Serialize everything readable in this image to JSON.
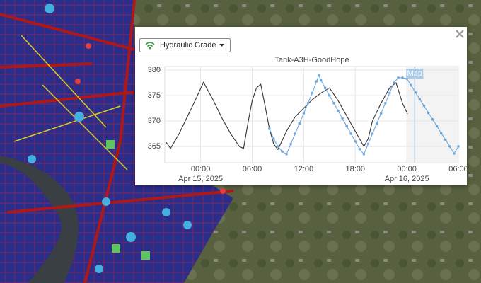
{
  "dropdown": {
    "label": "Hydraulic Grade"
  },
  "chart_data": {
    "type": "line",
    "title": "Tank-A3H-GoodHope",
    "xlim": [
      "2025-04-14T19:50",
      "2025-04-16T06:00"
    ],
    "xticks": [
      {
        "value": "2025-04-15T00:00",
        "label": "00:00\nApr 15, 2025"
      },
      {
        "value": "2025-04-15T06:00",
        "label": "06:00"
      },
      {
        "value": "2025-04-15T12:00",
        "label": "12:00"
      },
      {
        "value": "2025-04-15T18:00",
        "label": "18:00"
      },
      {
        "value": "2025-04-16T00:00",
        "label": "00:00\nApr 16, 2025"
      },
      {
        "value": "2025-04-16T06:00",
        "label": "06:00"
      }
    ],
    "ylim": [
      361.8,
      380.7
    ],
    "yticks": [
      365,
      370,
      375,
      380
    ],
    "grid": true,
    "shaded_from": "2025-04-16T00:00",
    "cursor": {
      "x": "2025-04-16T00:55",
      "label": "Map"
    },
    "series": [
      {
        "color": "#333333",
        "markers": false,
        "x": [
          "2025-04-14T20:00",
          "2025-04-14T20:30",
          "2025-04-14T21:30",
          "2025-04-14T22:30",
          "2025-04-14T23:30",
          "2025-04-15T00:20",
          "2025-04-15T01:30",
          "2025-04-15T02:30",
          "2025-04-15T03:30",
          "2025-04-15T04:30",
          "2025-04-15T05:00",
          "2025-04-15T05:30",
          "2025-04-15T06:00",
          "2025-04-15T06:30",
          "2025-04-15T07:00",
          "2025-04-15T07:30",
          "2025-04-15T08:00",
          "2025-04-15T08:30",
          "2025-04-15T09:00",
          "2025-04-15T10:00",
          "2025-04-15T11:00",
          "2025-04-15T12:00",
          "2025-04-15T13:00",
          "2025-04-15T14:00",
          "2025-04-15T15:00",
          "2025-04-15T16:00",
          "2025-04-15T17:00",
          "2025-04-15T18:00",
          "2025-04-15T19:00",
          "2025-04-15T19:30",
          "2025-04-15T20:00",
          "2025-04-15T21:00",
          "2025-04-15T22:00",
          "2025-04-15T22:45",
          "2025-04-15T23:30",
          "2025-04-16T00:05"
        ],
        "values": [
          365.8,
          364.6,
          367.5,
          371.0,
          374.5,
          377.6,
          374.0,
          370.5,
          367.5,
          365.0,
          364.6,
          369.5,
          374.0,
          376.5,
          377.2,
          373.0,
          368.5,
          365.5,
          364.4,
          368.0,
          370.8,
          372.5,
          374.2,
          375.5,
          376.5,
          374.0,
          371.0,
          368.0,
          365.0,
          366.5,
          370.0,
          373.5,
          376.5,
          377.5,
          373.5,
          371.4
        ]
      },
      {
        "color": "#6fa8dc",
        "markers": true,
        "x": [
          "2025-04-15T08:00",
          "2025-04-15T08:30",
          "2025-04-15T09:00",
          "2025-04-15T09:30",
          "2025-04-15T10:00",
          "2025-04-15T10:30",
          "2025-04-15T11:00",
          "2025-04-15T11:30",
          "2025-04-15T12:00",
          "2025-04-15T12:30",
          "2025-04-15T13:00",
          "2025-04-15T13:30",
          "2025-04-15T13:45",
          "2025-04-15T14:00",
          "2025-04-15T14:30",
          "2025-04-15T15:00",
          "2025-04-15T15:30",
          "2025-04-15T16:00",
          "2025-04-15T16:30",
          "2025-04-15T17:00",
          "2025-04-15T17:30",
          "2025-04-15T18:00",
          "2025-04-15T18:30",
          "2025-04-15T19:00",
          "2025-04-15T19:30",
          "2025-04-15T20:00",
          "2025-04-15T20:30",
          "2025-04-15T21:00",
          "2025-04-15T21:30",
          "2025-04-15T22:00",
          "2025-04-15T22:30",
          "2025-04-15T23:00",
          "2025-04-15T23:30",
          "2025-04-16T00:00",
          "2025-04-16T00:30",
          "2025-04-16T01:00",
          "2025-04-16T01:30",
          "2025-04-16T02:00",
          "2025-04-16T02:30",
          "2025-04-16T03:00",
          "2025-04-16T03:30",
          "2025-04-16T04:00",
          "2025-04-16T04:30",
          "2025-04-16T05:00",
          "2025-04-16T05:30",
          "2025-04-16T06:00"
        ],
        "values": [
          368.5,
          366.5,
          365.0,
          364.0,
          363.5,
          365.5,
          367.5,
          369.5,
          371.5,
          373.5,
          375.5,
          377.8,
          379.0,
          378.0,
          376.5,
          375.0,
          373.5,
          372.0,
          370.5,
          369.0,
          367.5,
          366.0,
          364.5,
          363.5,
          365.5,
          367.5,
          369.5,
          371.5,
          373.5,
          375.5,
          377.5,
          378.5,
          378.5,
          378.3,
          377.0,
          375.6,
          374.3,
          373.0,
          371.6,
          370.3,
          369.0,
          367.6,
          366.3,
          365.0,
          363.6,
          365.0
        ]
      }
    ]
  }
}
